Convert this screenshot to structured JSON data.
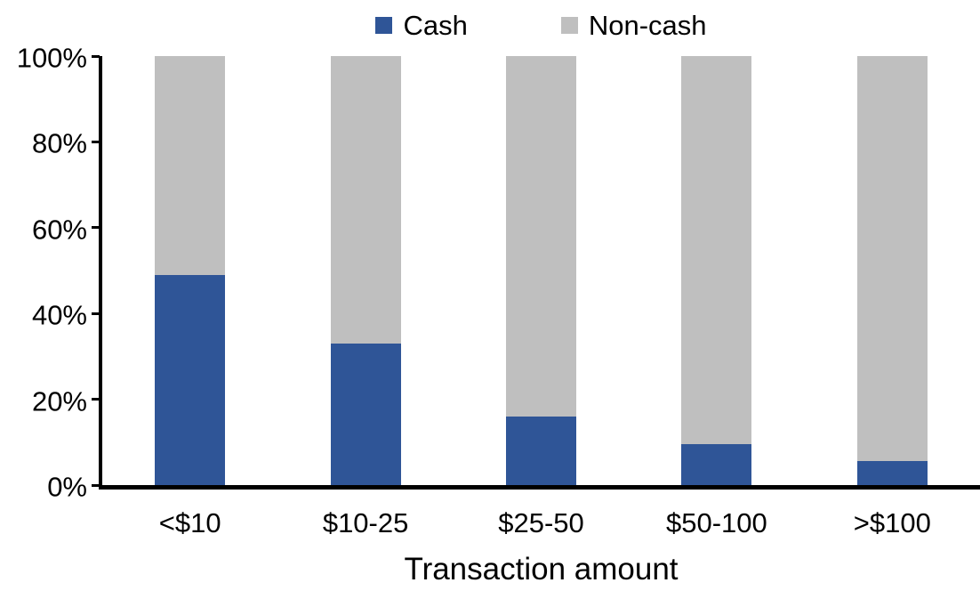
{
  "chart_data": {
    "type": "bar",
    "stacked": true,
    "orientation": "vertical",
    "categories": [
      "<$10",
      "$10-25",
      "$25-50",
      "$50-100",
      ">$100"
    ],
    "series": [
      {
        "name": "Cash",
        "color": "#2F5597",
        "values": [
          49,
          33,
          16,
          9.5,
          5.5
        ]
      },
      {
        "name": "Non-cash",
        "color": "#BFBFBF",
        "values": [
          51,
          67,
          84,
          90.5,
          94.5
        ]
      }
    ],
    "title": "",
    "xlabel": "Transaction amount",
    "ylabel": "",
    "ylim": [
      0,
      100
    ],
    "yticks": [
      {
        "value": 0,
        "label": "0%"
      },
      {
        "value": 20,
        "label": "20%"
      },
      {
        "value": 40,
        "label": "40%"
      },
      {
        "value": 60,
        "label": "60%"
      },
      {
        "value": 80,
        "label": "80%"
      },
      {
        "value": 100,
        "label": "100%"
      }
    ],
    "legend_position": "top-center",
    "grid": false,
    "axis_color": "#000000",
    "text_color": "#000000",
    "background_color": "#FFFFFF"
  }
}
